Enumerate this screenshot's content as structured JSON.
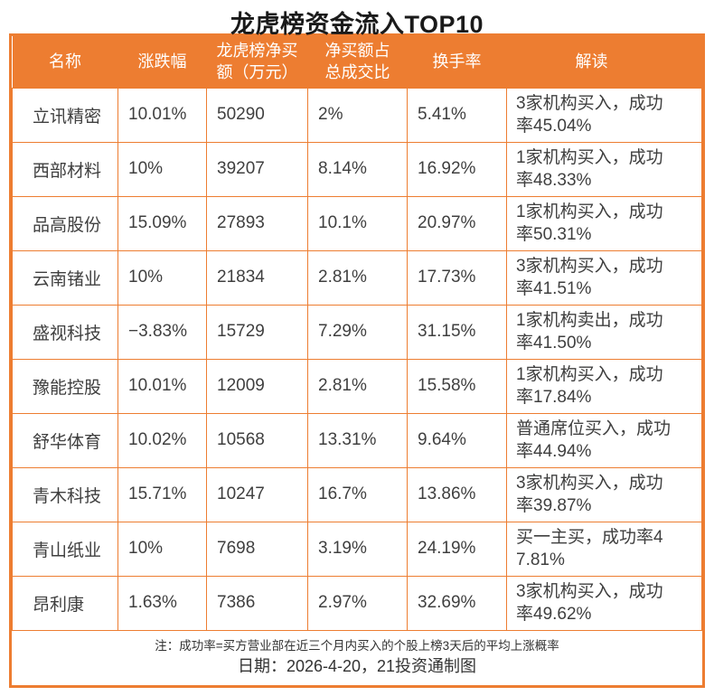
{
  "title": "龙虎榜资金流入TOP10",
  "colors": {
    "accent_orange": "#ED7D31",
    "header_text": "#FFFFFF",
    "body_text": "#3F3F3F"
  },
  "chart_data": {
    "type": "table",
    "title": "龙虎榜资金流入TOP10",
    "columns": [
      "名称",
      "涨跌幅",
      "龙虎榜净买\n额（万元）",
      "净买额占\n总成交比",
      "换手率",
      "解读"
    ],
    "column_keys": [
      "名称",
      "涨跌幅",
      "龙虎榜净买额（万元）",
      "净买额占总成交比",
      "换手率",
      "解读"
    ],
    "rows": [
      [
        "立讯精密",
        "10.01%",
        "50290",
        "2%",
        "5.41%",
        "3家机构买入，成功率45.04%"
      ],
      [
        "西部材料",
        "10%",
        "39207",
        "8.14%",
        "16.92%",
        "1家机构买入，成功率48.33%"
      ],
      [
        "品高股份",
        "15.09%",
        "27893",
        "10.1%",
        "20.97%",
        "1家机构买入，成功率50.31%"
      ],
      [
        "云南锗业",
        "10%",
        "21834",
        "2.81%",
        "17.73%",
        "3家机构买入，成功率41.51%"
      ],
      [
        "盛视科技",
        "−3.83%",
        "15729",
        "7.29%",
        "31.15%",
        "1家机构卖出，成功率41.50%"
      ],
      [
        "豫能控股",
        "10.01%",
        "12009",
        "2.81%",
        "15.58%",
        "1家机构买入，成功率17.84%"
      ],
      [
        "舒华体育",
        "10.02%",
        "10568",
        "13.31%",
        "9.64%",
        "普通席位买入，成功率44.94%"
      ],
      [
        "青木科技",
        "15.71%",
        "10247",
        "16.7%",
        "13.86%",
        "3家机构买入，成功率39.87%"
      ],
      [
        "青山纸业",
        "10%",
        "7698",
        "3.19%",
        "24.19%",
        "买一主买，成功率47.81%"
      ],
      [
        "昂利康",
        "1.63%",
        "7386",
        "2.97%",
        "32.69%",
        "3家机构买入，成功率49.62%"
      ]
    ]
  },
  "footer": {
    "note": "注：成功率=买方营业部在近三个月内买入的个股上榜3天后的平均上涨概率",
    "date_line": "日期：2026-4-20，21投资通制图"
  }
}
